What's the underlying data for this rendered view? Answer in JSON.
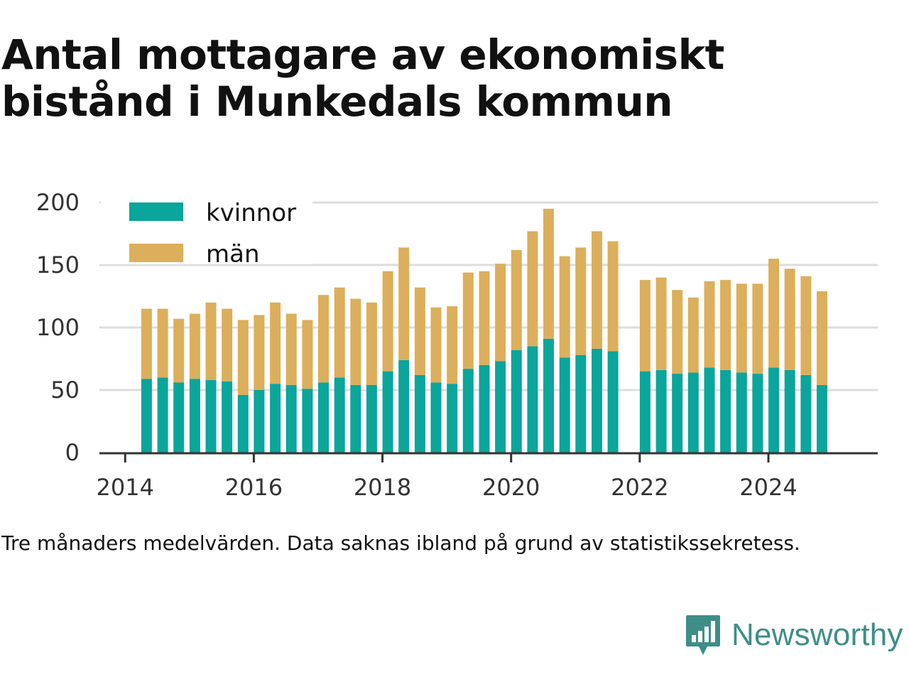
{
  "title": "Antal mottagare av ekonomiskt bistånd i Munkedals kommun",
  "caption": "Tre månaders medelvärden. Data saknas ibland på grund av statistikssekretess.",
  "brand": {
    "name": "Newsworthy",
    "icon": "newsworthy-logo-icon",
    "color": "#3e8e87"
  },
  "colors": {
    "kvinnor": "#0aa59b",
    "man": "#dcaf5c",
    "grid": "#dddddd",
    "axis": "#333333"
  },
  "chart_data": {
    "type": "bar",
    "stacked": true,
    "x_label_start": 2014.0,
    "xlim": [
      2013.6,
      2025.7
    ],
    "ylim": [
      0,
      200
    ],
    "y_ticks": [
      0,
      50,
      100,
      150,
      200
    ],
    "x_ticks": [
      "2014",
      "2016",
      "2018",
      "2020",
      "2022",
      "2024"
    ],
    "legend_position": "top-left",
    "grid": true,
    "x": [
      "2014-05",
      "2014-08",
      "2014-11",
      "2015-02",
      "2015-05",
      "2015-08",
      "2015-11",
      "2016-02",
      "2016-05",
      "2016-08",
      "2016-11",
      "2017-02",
      "2017-05",
      "2017-08",
      "2017-11",
      "2018-02",
      "2018-05",
      "2018-08",
      "2018-11",
      "2019-02",
      "2019-05",
      "2019-08",
      "2019-11",
      "2020-02",
      "2020-05",
      "2020-08",
      "2020-11",
      "2021-02",
      "2021-05",
      "2021-08",
      "2022-02",
      "2022-05",
      "2022-08",
      "2022-11",
      "2023-02",
      "2023-05",
      "2023-08",
      "2023-11",
      "2024-02",
      "2024-05",
      "2024-08",
      "2024-11"
    ],
    "series": [
      {
        "name": "kvinnor",
        "values": [
          59,
          60,
          56,
          59,
          58,
          57,
          46,
          50,
          55,
          54,
          51,
          56,
          60,
          54,
          54,
          65,
          74,
          62,
          56,
          55,
          67,
          70,
          73,
          82,
          85,
          91,
          76,
          78,
          83,
          81,
          65,
          66,
          63,
          64,
          68,
          66,
          64,
          63,
          68,
          66,
          62,
          54
        ]
      },
      {
        "name": "män",
        "values": [
          56,
          55,
          51,
          52,
          62,
          58,
          60,
          60,
          65,
          57,
          55,
          70,
          72,
          69,
          66,
          80,
          90,
          70,
          60,
          62,
          77,
          75,
          78,
          80,
          92,
          104,
          81,
          86,
          94,
          88,
          73,
          74,
          67,
          60,
          69,
          72,
          71,
          72,
          87,
          81,
          79,
          75
        ]
      }
    ]
  }
}
